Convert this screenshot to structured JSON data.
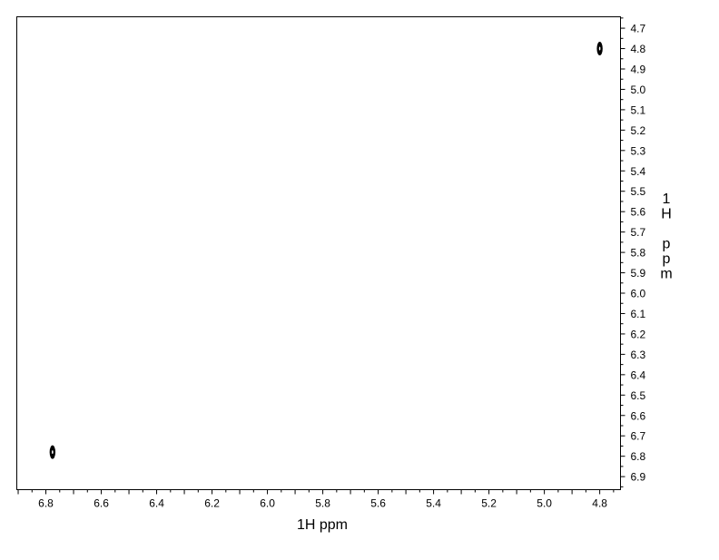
{
  "chart_data": {
    "type": "scatter",
    "subtype": "2D NMR contour plot",
    "title": "",
    "xlabel": "1H ppm",
    "ylabel": "1H ppm",
    "ylabel_chars": [
      "1",
      "H",
      "",
      "p",
      "p",
      "m"
    ],
    "xlim": [
      6.905,
      4.725
    ],
    "ylim": [
      4.644,
      6.964
    ],
    "x_reversed": true,
    "y_axis_position": "right",
    "x_ticks": [
      "6.8",
      "6.6",
      "6.4",
      "6.2",
      "6.0",
      "5.8",
      "5.6",
      "5.4",
      "5.2",
      "5.0",
      "4.8"
    ],
    "y_ticks": [
      "4.7",
      "4.8",
      "4.9",
      "5.0",
      "5.1",
      "5.2",
      "5.3",
      "5.4",
      "5.5",
      "5.6",
      "5.7",
      "5.8",
      "5.9",
      "6.0",
      "6.1",
      "6.2",
      "6.3",
      "6.4",
      "6.5",
      "6.6",
      "6.7",
      "6.8",
      "6.9"
    ],
    "grid": false,
    "peaks": [
      {
        "x": 4.8,
        "y": 4.8
      },
      {
        "x": 6.776,
        "y": 6.78
      }
    ],
    "colors": {
      "peak": "#000000",
      "axis": "#000000"
    }
  }
}
